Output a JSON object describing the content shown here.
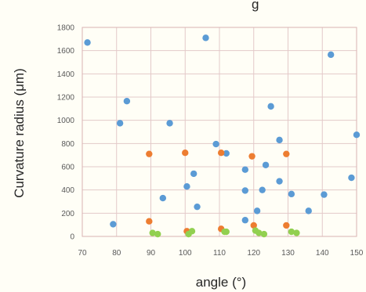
{
  "chart_data": {
    "type": "scatter",
    "title": "",
    "title_fragment": "g",
    "xlabel": "angle (°)",
    "ylabel": "Curvature radius (μm)",
    "xlim": [
      70,
      150
    ],
    "ylim": [
      0,
      1800
    ],
    "xticks": [
      "70",
      "80",
      "90",
      "100",
      "110",
      "120",
      "130",
      "140",
      "150"
    ],
    "yticks": [
      "0",
      "200",
      "400",
      "600",
      "800",
      "1000",
      "1200",
      "1400",
      "1600",
      "1800"
    ],
    "grid": true,
    "legend": "none",
    "series": [
      {
        "color": "#5b9bd5",
        "points": [
          [
            71.5,
            1670
          ],
          [
            79,
            105
          ],
          [
            81,
            975
          ],
          [
            83,
            1165
          ],
          [
            93.5,
            330
          ],
          [
            95.5,
            975
          ],
          [
            100.5,
            430
          ],
          [
            102.5,
            540
          ],
          [
            103.5,
            255
          ],
          [
            106,
            1710
          ],
          [
            109,
            795
          ],
          [
            112,
            715
          ],
          [
            117.5,
            395
          ],
          [
            117.5,
            575
          ],
          [
            117.5,
            140
          ],
          [
            121,
            220
          ],
          [
            122.5,
            400
          ],
          [
            123.5,
            615
          ],
          [
            125,
            1120
          ],
          [
            127.5,
            830
          ],
          [
            127.5,
            475
          ],
          [
            131,
            365
          ],
          [
            136,
            220
          ],
          [
            140.5,
            360
          ],
          [
            142.5,
            1565
          ],
          [
            148.5,
            505
          ],
          [
            150,
            875
          ]
        ]
      },
      {
        "color": "#ed7d31",
        "points": [
          [
            89.5,
            710
          ],
          [
            89.5,
            130
          ],
          [
            100,
            720
          ],
          [
            100.5,
            45
          ],
          [
            110.5,
            720
          ],
          [
            110.5,
            65
          ],
          [
            119.5,
            690
          ],
          [
            120,
            95
          ],
          [
            129.5,
            710
          ],
          [
            129.5,
            95
          ]
        ]
      },
      {
        "color": "#92d050",
        "points": [
          [
            90.5,
            30
          ],
          [
            92,
            20
          ],
          [
            101,
            20
          ],
          [
            102,
            45
          ],
          [
            111.5,
            40
          ],
          [
            112,
            40
          ],
          [
            120.5,
            50
          ],
          [
            121.5,
            30
          ],
          [
            123,
            20
          ],
          [
            131,
            40
          ],
          [
            132.5,
            30
          ]
        ]
      }
    ]
  }
}
